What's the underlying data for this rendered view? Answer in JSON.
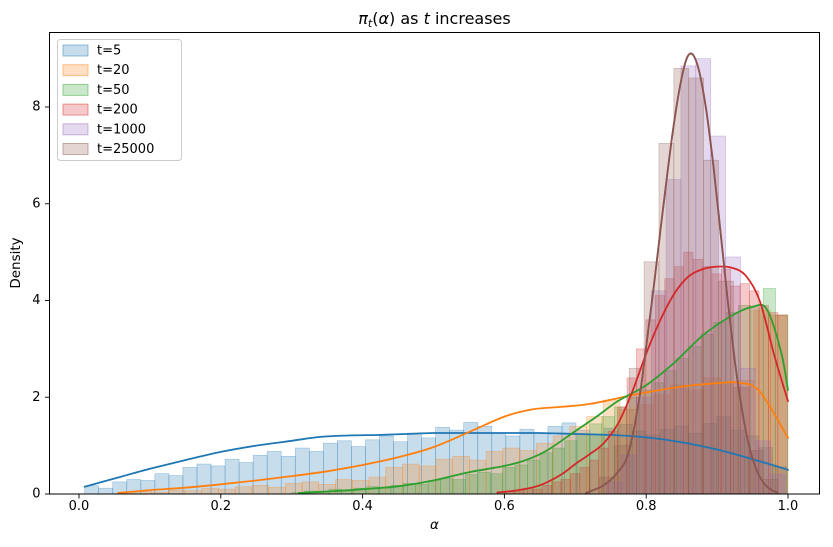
{
  "figure": {
    "title": {
      "pi": "π",
      "sub": "t",
      "open": "(",
      "alpha": "α",
      "close": ")",
      "mid": " as ",
      "t": "t",
      "rest": " increases"
    },
    "xlabel": "α",
    "ylabel": "Density"
  },
  "chart_data": {
    "type": "histogram+kde",
    "title": "π_t(α) as t increases",
    "xlabel": "α",
    "ylabel": "Density",
    "xlim": [
      -0.042,
      1.045
    ],
    "ylim": [
      0,
      9.55
    ],
    "grid": false,
    "legend_position": "upper left",
    "xticks": {
      "values": [
        0.0,
        0.2,
        0.4,
        0.6,
        0.8,
        1.0
      ],
      "labels": [
        "0.0",
        "0.2",
        "0.4",
        "0.6",
        "0.8",
        "1.0"
      ]
    },
    "yticks": {
      "values": [
        0,
        2,
        4,
        6,
        8
      ],
      "labels": [
        "0",
        "2",
        "4",
        "6",
        "8"
      ]
    },
    "series": [
      {
        "label": "t=5",
        "color": "#1f77b4",
        "fill_alpha": 0.25,
        "hist": {
          "start": 0.008,
          "bin_width": 0.0198,
          "heights": [
            0.17,
            0.12,
            0.25,
            0.3,
            0.28,
            0.42,
            0.38,
            0.55,
            0.62,
            0.58,
            0.72,
            0.65,
            0.8,
            0.88,
            0.78,
            0.95,
            0.88,
            1.05,
            1.1,
            0.98,
            1.12,
            1.2,
            1.08,
            1.26,
            1.16,
            1.38,
            1.32,
            1.48,
            1.4,
            1.26,
            1.2,
            1.34,
            1.26,
            1.4,
            1.47,
            1.32,
            1.24,
            1.36,
            1.44,
            1.3,
            1.22,
            1.34,
            1.4,
            1.26,
            1.46,
            1.6,
            1.32,
            1.2,
            0.96,
            0.56
          ]
        },
        "kde": [
          [
            0.008,
            0.15
          ],
          [
            0.05,
            0.32
          ],
          [
            0.1,
            0.52
          ],
          [
            0.15,
            0.7
          ],
          [
            0.2,
            0.87
          ],
          [
            0.25,
            1.0
          ],
          [
            0.3,
            1.1
          ],
          [
            0.34,
            1.18
          ],
          [
            0.38,
            1.21
          ],
          [
            0.42,
            1.22
          ],
          [
            0.46,
            1.24
          ],
          [
            0.5,
            1.26
          ],
          [
            0.55,
            1.26
          ],
          [
            0.6,
            1.26
          ],
          [
            0.65,
            1.26
          ],
          [
            0.7,
            1.24
          ],
          [
            0.75,
            1.22
          ],
          [
            0.8,
            1.17
          ],
          [
            0.85,
            1.07
          ],
          [
            0.9,
            0.92
          ],
          [
            0.95,
            0.72
          ],
          [
            1.0,
            0.5
          ]
        ]
      },
      {
        "label": "t=20",
        "color": "#ff7f0e",
        "fill_alpha": 0.25,
        "hist": {
          "start": 0.055,
          "bin_width": 0.0236,
          "heights": [
            0.02,
            0.05,
            0.04,
            0.08,
            0.07,
            0.12,
            0.1,
            0.15,
            0.18,
            0.14,
            0.22,
            0.25,
            0.2,
            0.3,
            0.28,
            0.35,
            0.55,
            0.62,
            0.58,
            0.72,
            0.78,
            0.7,
            0.88,
            0.95,
            0.9,
            1.05,
            1.2,
            1.4,
            1.6,
            1.94,
            1.75,
            1.85,
            2.05,
            2.25,
            2.15,
            2.4,
            2.3,
            2.35,
            3.8,
            3.7
          ]
        },
        "kde": [
          [
            0.055,
            0.02
          ],
          [
            0.1,
            0.08
          ],
          [
            0.15,
            0.13
          ],
          [
            0.2,
            0.2
          ],
          [
            0.25,
            0.28
          ],
          [
            0.3,
            0.37
          ],
          [
            0.35,
            0.47
          ],
          [
            0.4,
            0.6
          ],
          [
            0.45,
            0.76
          ],
          [
            0.5,
            0.97
          ],
          [
            0.55,
            1.28
          ],
          [
            0.6,
            1.6
          ],
          [
            0.64,
            1.75
          ],
          [
            0.68,
            1.8
          ],
          [
            0.72,
            1.86
          ],
          [
            0.76,
            1.98
          ],
          [
            0.8,
            2.1
          ],
          [
            0.85,
            2.22
          ],
          [
            0.9,
            2.29
          ],
          [
            0.93,
            2.3
          ],
          [
            0.96,
            2.12
          ],
          [
            1.0,
            1.16
          ]
        ]
      },
      {
        "label": "t=50",
        "color": "#2ca02c",
        "fill_alpha": 0.25,
        "hist": {
          "start": 0.3,
          "bin_width": 0.0175,
          "heights": [
            0.03,
            0.06,
            0.05,
            0.1,
            0.08,
            0.12,
            0.15,
            0.12,
            0.18,
            0.22,
            0.2,
            0.28,
            0.32,
            0.3,
            0.4,
            0.45,
            0.42,
            0.55,
            0.6,
            0.7,
            0.85,
            0.95,
            1.1,
            1.25,
            1.45,
            1.6,
            1.8,
            2.0,
            2.15,
            2.3,
            2.55,
            2.8,
            3.05,
            3.3,
            3.55,
            3.75,
            3.9,
            3.85,
            4.25,
            3.7
          ]
        },
        "kde": [
          [
            0.31,
            0.02
          ],
          [
            0.36,
            0.06
          ],
          [
            0.4,
            0.1
          ],
          [
            0.45,
            0.16
          ],
          [
            0.5,
            0.28
          ],
          [
            0.55,
            0.45
          ],
          [
            0.6,
            0.58
          ],
          [
            0.63,
            0.7
          ],
          [
            0.66,
            0.9
          ],
          [
            0.7,
            1.3
          ],
          [
            0.73,
            1.6
          ],
          [
            0.76,
            1.92
          ],
          [
            0.8,
            2.25
          ],
          [
            0.84,
            2.72
          ],
          [
            0.88,
            3.28
          ],
          [
            0.92,
            3.68
          ],
          [
            0.95,
            3.87
          ],
          [
            0.97,
            3.82
          ],
          [
            0.99,
            2.95
          ],
          [
            1.0,
            2.15
          ]
        ]
      },
      {
        "label": "t=200",
        "color": "#d62728",
        "fill_alpha": 0.25,
        "hist": {
          "start": 0.6,
          "bin_width": 0.0133,
          "heights": [
            0.05,
            0.08,
            0.12,
            0.1,
            0.18,
            0.25,
            0.3,
            0.42,
            0.55,
            0.7,
            0.95,
            1.3,
            1.8,
            2.4,
            3.0,
            3.6,
            4.1,
            4.45,
            4.7,
            5.0,
            4.85,
            4.7,
            4.55,
            4.65,
            4.3,
            4.35,
            4.2,
            3.9,
            3.75,
            3.7
          ]
        },
        "kde": [
          [
            0.59,
            0.03
          ],
          [
            0.62,
            0.08
          ],
          [
            0.65,
            0.18
          ],
          [
            0.68,
            0.4
          ],
          [
            0.7,
            0.62
          ],
          [
            0.72,
            0.82
          ],
          [
            0.74,
            1.05
          ],
          [
            0.76,
            1.45
          ],
          [
            0.78,
            2.1
          ],
          [
            0.8,
            2.9
          ],
          [
            0.82,
            3.6
          ],
          [
            0.84,
            4.15
          ],
          [
            0.86,
            4.5
          ],
          [
            0.88,
            4.65
          ],
          [
            0.9,
            4.7
          ],
          [
            0.92,
            4.68
          ],
          [
            0.94,
            4.52
          ],
          [
            0.96,
            4.0
          ],
          [
            0.98,
            2.9
          ],
          [
            0.99,
            2.4
          ],
          [
            1.0,
            1.92
          ]
        ]
      },
      {
        "label": "t=1000",
        "color": "#9467bd",
        "fill_alpha": 0.25,
        "hist": {
          "start": 0.744,
          "bin_width": 0.021,
          "heights": [
            0.25,
            0.8,
            2.0,
            4.2,
            6.5,
            8.85,
            9.0,
            7.4,
            4.9,
            2.6,
            1.1,
            0.4
          ]
        },
        "kde": [
          [
            0.715,
            0.02
          ],
          [
            0.74,
            0.18
          ],
          [
            0.76,
            0.45
          ],
          [
            0.775,
            0.85
          ],
          [
            0.79,
            1.95
          ],
          [
            0.8,
            3.05
          ],
          [
            0.81,
            4.2
          ],
          [
            0.82,
            5.45
          ],
          [
            0.83,
            6.65
          ],
          [
            0.84,
            7.75
          ],
          [
            0.85,
            8.6
          ],
          [
            0.858,
            9.03
          ],
          [
            0.866,
            9.08
          ],
          [
            0.875,
            8.72
          ],
          [
            0.885,
            7.9
          ],
          [
            0.895,
            6.75
          ],
          [
            0.905,
            5.4
          ],
          [
            0.915,
            4.0
          ],
          [
            0.925,
            2.75
          ],
          [
            0.935,
            1.75
          ],
          [
            0.945,
            1.0
          ],
          [
            0.955,
            0.52
          ],
          [
            0.965,
            0.24
          ],
          [
            0.975,
            0.1
          ],
          [
            0.985,
            0.03
          ]
        ]
      },
      {
        "label": "t=25000",
        "color": "#8c564b",
        "fill_alpha": 0.25,
        "hist": {
          "start": 0.734,
          "bin_width": 0.021,
          "heights": [
            0.35,
            1.0,
            2.6,
            4.8,
            7.25,
            8.8,
            8.6,
            6.9,
            4.4,
            2.2,
            0.9,
            0.3
          ]
        },
        "kde": [
          [
            0.715,
            0.02
          ],
          [
            0.74,
            0.18
          ],
          [
            0.76,
            0.45
          ],
          [
            0.775,
            0.85
          ],
          [
            0.79,
            1.95
          ],
          [
            0.8,
            3.05
          ],
          [
            0.81,
            4.2
          ],
          [
            0.82,
            5.45
          ],
          [
            0.83,
            6.65
          ],
          [
            0.84,
            7.75
          ],
          [
            0.85,
            8.6
          ],
          [
            0.858,
            9.03
          ],
          [
            0.866,
            9.08
          ],
          [
            0.875,
            8.72
          ],
          [
            0.885,
            7.9
          ],
          [
            0.895,
            6.75
          ],
          [
            0.905,
            5.4
          ],
          [
            0.915,
            4.0
          ],
          [
            0.925,
            2.75
          ],
          [
            0.935,
            1.75
          ],
          [
            0.945,
            1.0
          ],
          [
            0.955,
            0.52
          ],
          [
            0.965,
            0.24
          ],
          [
            0.975,
            0.1
          ],
          [
            0.985,
            0.03
          ]
        ]
      }
    ]
  }
}
